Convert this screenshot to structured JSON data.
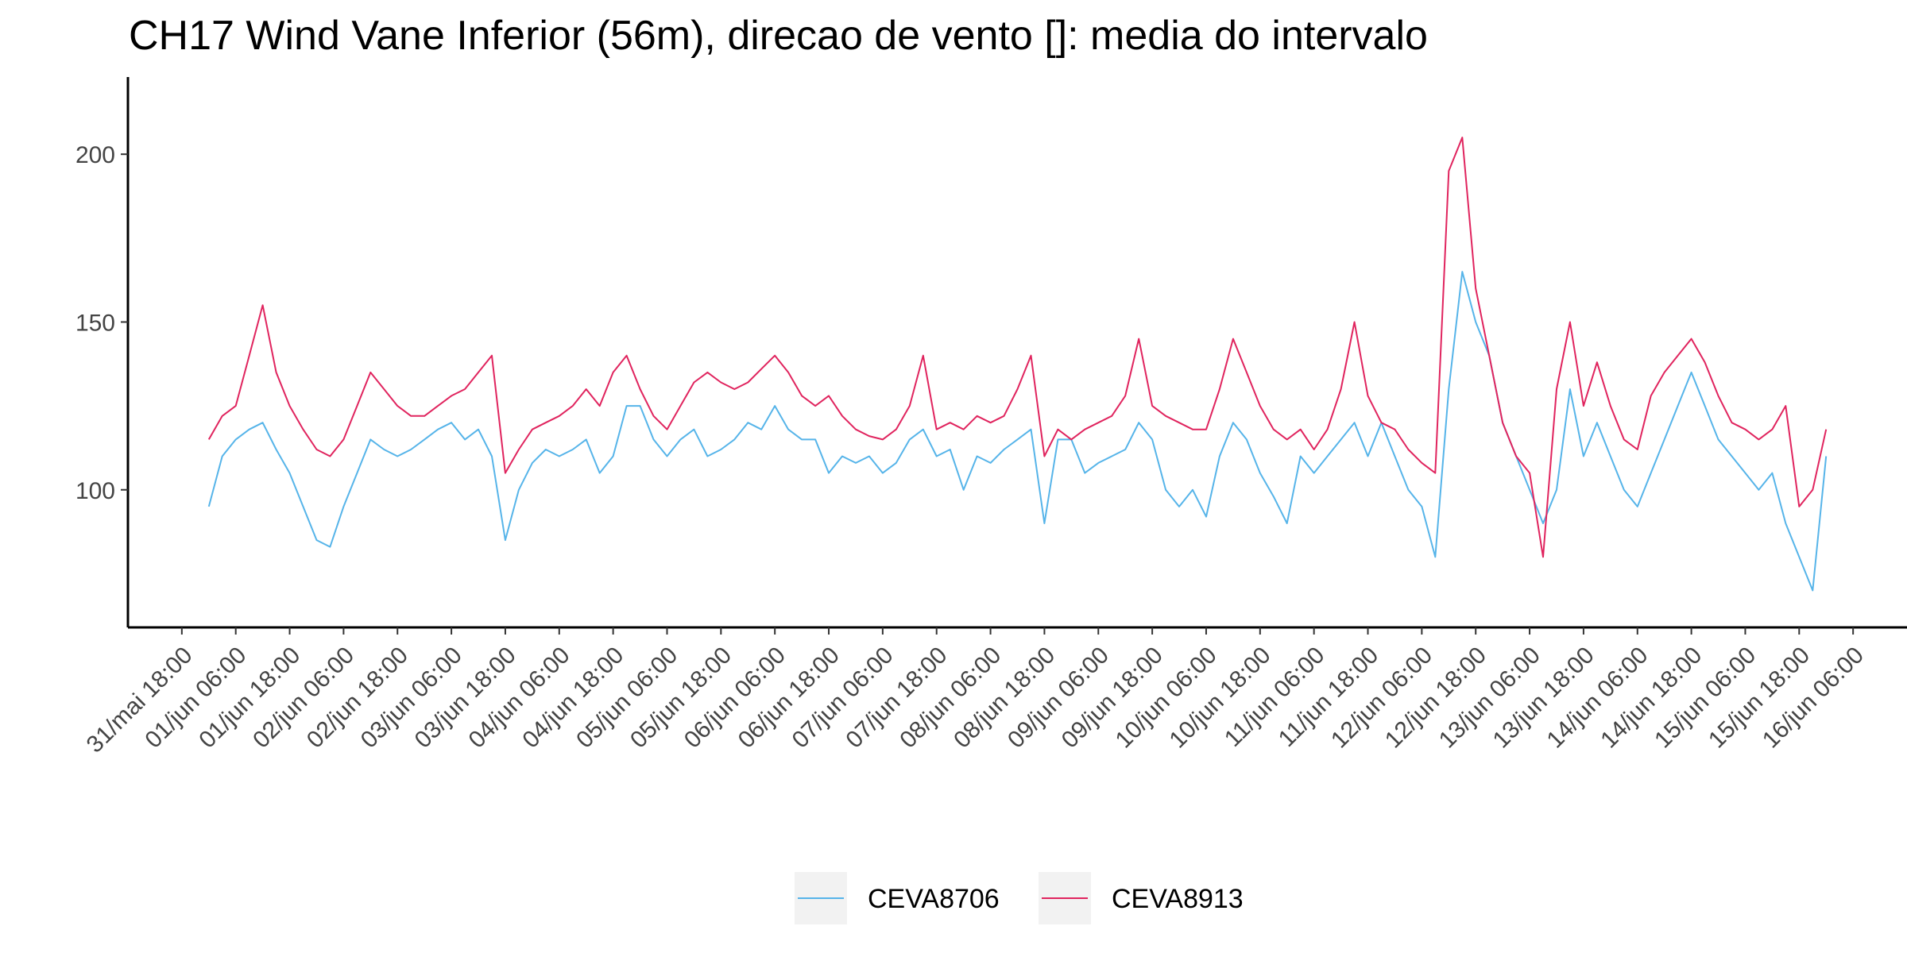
{
  "chart_data": {
    "type": "line",
    "title": "CH17 Wind Vane Inferior (56m), direcao de vento []: media do intervalo",
    "x": [
      "01/jun 00:00",
      "01/jun 03:00",
      "01/jun 06:00",
      "01/jun 09:00",
      "01/jun 12:00",
      "01/jun 15:00",
      "01/jun 18:00",
      "01/jun 21:00",
      "02/jun 00:00",
      "02/jun 03:00",
      "02/jun 06:00",
      "02/jun 09:00",
      "02/jun 12:00",
      "02/jun 15:00",
      "02/jun 18:00",
      "02/jun 21:00",
      "03/jun 00:00",
      "03/jun 03:00",
      "03/jun 06:00",
      "03/jun 09:00",
      "03/jun 12:00",
      "03/jun 15:00",
      "03/jun 18:00",
      "03/jun 21:00",
      "04/jun 00:00",
      "04/jun 03:00",
      "04/jun 06:00",
      "04/jun 09:00",
      "04/jun 12:00",
      "04/jun 15:00",
      "04/jun 18:00",
      "04/jun 21:00",
      "05/jun 00:00",
      "05/jun 03:00",
      "05/jun 06:00",
      "05/jun 09:00",
      "05/jun 12:00",
      "05/jun 15:00",
      "05/jun 18:00",
      "05/jun 21:00",
      "06/jun 00:00",
      "06/jun 03:00",
      "06/jun 06:00",
      "06/jun 09:00",
      "06/jun 12:00",
      "06/jun 15:00",
      "06/jun 18:00",
      "06/jun 21:00",
      "07/jun 00:00",
      "07/jun 03:00",
      "07/jun 06:00",
      "07/jun 09:00",
      "07/jun 12:00",
      "07/jun 15:00",
      "07/jun 18:00",
      "07/jun 21:00",
      "08/jun 00:00",
      "08/jun 03:00",
      "08/jun 06:00",
      "08/jun 09:00",
      "08/jun 12:00",
      "08/jun 15:00",
      "08/jun 18:00",
      "08/jun 21:00",
      "09/jun 00:00",
      "09/jun 03:00",
      "09/jun 06:00",
      "09/jun 09:00",
      "09/jun 12:00",
      "09/jun 15:00",
      "09/jun 18:00",
      "09/jun 21:00",
      "10/jun 00:00",
      "10/jun 03:00",
      "10/jun 06:00",
      "10/jun 09:00",
      "10/jun 12:00",
      "10/jun 15:00",
      "10/jun 18:00",
      "10/jun 21:00",
      "11/jun 00:00",
      "11/jun 03:00",
      "11/jun 06:00",
      "11/jun 09:00",
      "11/jun 12:00",
      "11/jun 15:00",
      "11/jun 18:00",
      "11/jun 21:00",
      "12/jun 00:00",
      "12/jun 03:00",
      "12/jun 06:00",
      "12/jun 09:00",
      "12/jun 12:00",
      "12/jun 15:00",
      "12/jun 18:00",
      "12/jun 21:00",
      "13/jun 00:00",
      "13/jun 03:00",
      "13/jun 06:00",
      "13/jun 09:00",
      "13/jun 12:00",
      "13/jun 15:00",
      "13/jun 18:00",
      "13/jun 21:00",
      "14/jun 00:00",
      "14/jun 03:00",
      "14/jun 06:00",
      "14/jun 09:00",
      "14/jun 12:00",
      "14/jun 15:00",
      "14/jun 18:00",
      "14/jun 21:00",
      "15/jun 00:00",
      "15/jun 03:00",
      "15/jun 06:00",
      "15/jun 09:00",
      "15/jun 12:00",
      "15/jun 15:00",
      "15/jun 18:00",
      "15/jun 21:00",
      "16/jun 00:00"
    ],
    "series": [
      {
        "name": "CEVA8706",
        "color": "#56b4e9",
        "values": [
          95,
          110,
          115,
          118,
          120,
          112,
          105,
          95,
          85,
          83,
          95,
          105,
          115,
          112,
          110,
          112,
          115,
          118,
          120,
          115,
          118,
          110,
          85,
          100,
          108,
          112,
          110,
          112,
          115,
          105,
          110,
          125,
          125,
          115,
          110,
          115,
          118,
          110,
          112,
          115,
          120,
          118,
          125,
          118,
          115,
          115,
          105,
          110,
          108,
          110,
          105,
          108,
          115,
          118,
          110,
          112,
          100,
          110,
          108,
          112,
          115,
          118,
          90,
          115,
          115,
          105,
          108,
          110,
          112,
          120,
          115,
          100,
          95,
          100,
          92,
          110,
          120,
          115,
          105,
          98,
          90,
          110,
          105,
          110,
          115,
          120,
          110,
          120,
          110,
          100,
          95,
          80,
          130,
          165,
          150,
          140,
          120,
          110,
          100,
          90,
          100,
          130,
          110,
          120,
          110,
          100,
          95,
          105,
          115,
          125,
          135,
          125,
          115,
          110,
          105,
          100,
          105,
          90,
          80,
          70,
          110
        ]
      },
      {
        "name": "CEVA8913",
        "color": "#e0245e",
        "values": [
          115,
          122,
          125,
          140,
          155,
          135,
          125,
          118,
          112,
          110,
          115,
          125,
          135,
          130,
          125,
          122,
          122,
          125,
          128,
          130,
          135,
          140,
          105,
          112,
          118,
          120,
          122,
          125,
          130,
          125,
          135,
          140,
          130,
          122,
          118,
          125,
          132,
          135,
          132,
          130,
          132,
          136,
          140,
          135,
          128,
          125,
          128,
          122,
          118,
          116,
          115,
          118,
          125,
          140,
          118,
          120,
          118,
          122,
          120,
          122,
          130,
          140,
          110,
          118,
          115,
          118,
          120,
          122,
          128,
          145,
          125,
          122,
          120,
          118,
          118,
          130,
          145,
          135,
          125,
          118,
          115,
          118,
          112,
          118,
          130,
          150,
          128,
          120,
          118,
          112,
          108,
          105,
          195,
          205,
          160,
          140,
          120,
          110,
          105,
          80,
          130,
          150,
          125,
          138,
          125,
          115,
          112,
          128,
          135,
          140,
          145,
          138,
          128,
          120,
          118,
          115,
          118,
          125,
          95,
          100,
          118
        ]
      }
    ],
    "xlim": [
      "31/mai 06:00",
      "16/jun 18:00"
    ],
    "xticks": [
      "31/mai 18:00",
      "01/jun 06:00",
      "01/jun 18:00",
      "02/jun 06:00",
      "02/jun 18:00",
      "03/jun 06:00",
      "03/jun 18:00",
      "04/jun 06:00",
      "04/jun 18:00",
      "05/jun 06:00",
      "05/jun 18:00",
      "06/jun 06:00",
      "06/jun 18:00",
      "07/jun 06:00",
      "07/jun 18:00",
      "08/jun 06:00",
      "08/jun 18:00",
      "09/jun 06:00",
      "09/jun 18:00",
      "10/jun 06:00",
      "10/jun 18:00",
      "11/jun 06:00",
      "11/jun 18:00",
      "12/jun 06:00",
      "12/jun 18:00",
      "13/jun 06:00",
      "13/jun 18:00",
      "14/jun 06:00",
      "14/jun 18:00",
      "15/jun 06:00",
      "15/jun 18:00",
      "16/jun 06:00"
    ],
    "ylim": [
      59,
      223
    ],
    "yticks": [
      100,
      150,
      200
    ],
    "grid": false,
    "legend": "bottom"
  }
}
